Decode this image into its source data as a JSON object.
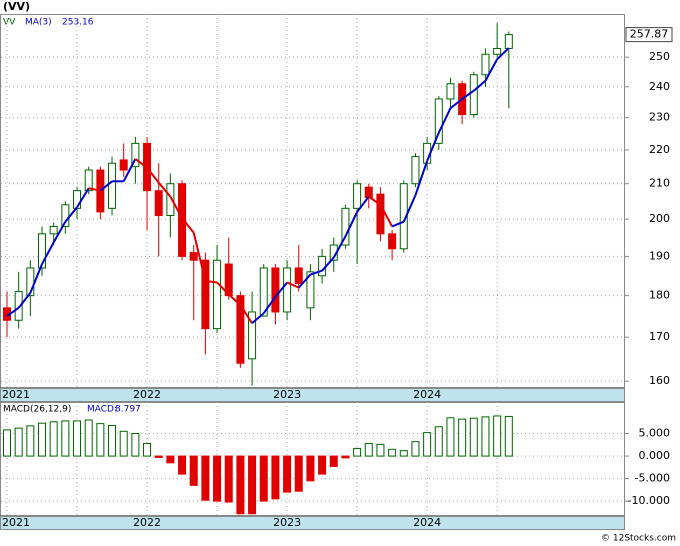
{
  "header": "(VV)",
  "footer": "© 12Stocks.com",
  "chart_data": [
    {
      "type": "candlestick",
      "name": "VV",
      "open": [
        177,
        174,
        180,
        187,
        196,
        198,
        203,
        208,
        214,
        203,
        217,
        215,
        222,
        208,
        201,
        210,
        191,
        189,
        172,
        188,
        180,
        165,
        175,
        187,
        176,
        187,
        177,
        185,
        189,
        193,
        203,
        209,
        207,
        196,
        192,
        210,
        216,
        222,
        236,
        241,
        231,
        244,
        251,
        253
      ],
      "high": [
        181,
        186,
        189,
        198,
        199,
        205,
        209,
        215,
        215,
        218,
        222,
        224,
        224,
        216,
        213,
        211,
        193,
        191,
        193,
        195,
        181,
        181,
        188,
        188,
        189,
        193,
        188,
        192,
        195,
        204,
        211,
        210,
        209,
        197,
        211,
        219,
        224,
        237,
        243,
        242,
        245,
        253,
        262,
        259
      ],
      "low": [
        170,
        172,
        175,
        185,
        193,
        196,
        200,
        207,
        200,
        201,
        212,
        210,
        197,
        190,
        195,
        189,
        174,
        166,
        171,
        179,
        163,
        159,
        175,
        173,
        174,
        181,
        174,
        183,
        186,
        192,
        188,
        203,
        194,
        189,
        191,
        209,
        214,
        220,
        233,
        228,
        230,
        240,
        250,
        233
      ],
      "close": [
        174,
        181,
        187,
        196,
        198,
        204,
        208,
        214,
        202,
        216,
        214,
        222,
        208,
        201,
        210,
        190,
        189,
        172,
        189,
        180,
        164,
        176,
        187,
        176,
        187,
        183,
        186,
        190,
        193,
        203,
        210,
        206,
        196,
        192,
        210,
        218,
        222,
        236,
        241,
        231,
        244,
        251,
        253,
        257.87
      ],
      "ma": {
        "name": "MA(3)",
        "values": [
          175,
          177,
          180.7,
          188,
          193.7,
          199.3,
          203.3,
          208.7,
          208,
          210.7,
          210.7,
          217.3,
          214.7,
          210.3,
          206.3,
          200.3,
          196.3,
          183.7,
          183.3,
          180.3,
          177.7,
          173.3,
          175.7,
          179.7,
          183.3,
          182,
          185.3,
          186.3,
          189.7,
          195.3,
          202,
          206.3,
          204,
          198,
          199.3,
          206.7,
          216.7,
          225.3,
          233,
          236,
          238.7,
          242,
          249.3,
          253.16
        ],
        "up_color": "#0000cc",
        "down_color": "#e00000"
      },
      "up_color": "#006400",
      "down_color": "#e00000",
      "ylim": [
        158.5,
        265.3
      ],
      "yticks": [
        160,
        170,
        180,
        190,
        200,
        210,
        220,
        230,
        240,
        250
      ],
      "log": true,
      "grid": true,
      "xticks": [
        {
          "value": 0,
          "label": "2021"
        },
        {
          "value": 12,
          "label": "2022"
        },
        {
          "value": 24,
          "label": "2023"
        },
        {
          "value": 36,
          "label": "2024"
        }
      ]
    },
    {
      "type": "bar",
      "name": "MACD(26,12,9)",
      "legend_label": "MACD:",
      "values": [
        5.8,
        6.2,
        6.7,
        7.3,
        7.6,
        7.8,
        7.8,
        8.0,
        7.2,
        6.8,
        5.5,
        5.0,
        2.8,
        -0.3,
        -1.5,
        -4.0,
        -6.5,
        -9.8,
        -10.0,
        -10.2,
        -12.8,
        -12.8,
        -10.0,
        -9.5,
        -8.0,
        -7.8,
        -5.5,
        -4.0,
        -2.3,
        -0.4,
        1.7,
        2.8,
        2.6,
        1.5,
        1.2,
        3.2,
        5.2,
        6.5,
        8.5,
        8.2,
        8.4,
        8.7,
        8.9,
        8.797
      ],
      "up_color": "#006400",
      "down_color": "#e00000",
      "ylim": [
        -13.3,
        12
      ],
      "yticks": [
        {
          "value": 5,
          "label": "5.000"
        },
        {
          "value": 0,
          "label": "0.000"
        },
        {
          "value": -5,
          "label": "-5.000"
        },
        {
          "value": -10,
          "label": "-10.000"
        }
      ],
      "grid": true,
      "xticks": [
        {
          "value": 0,
          "label": "2021"
        },
        {
          "value": 12,
          "label": "2022"
        },
        {
          "value": 24,
          "label": "2023"
        },
        {
          "value": 36,
          "label": "2024"
        }
      ]
    }
  ]
}
